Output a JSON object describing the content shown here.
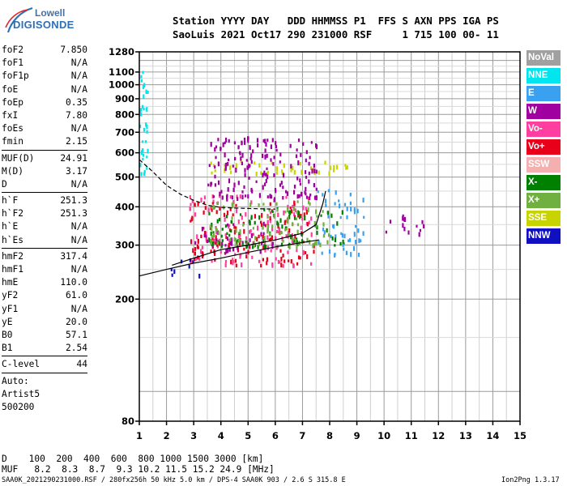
{
  "logo": {
    "line1": "Lowell",
    "line2": "DIGISONDE"
  },
  "header": {
    "line1": "Station YYYY DAY   DDD HHMMSS P1  FFS S AXN PPS IGA PS",
    "line2": "SaoLuis 2021 Oct17 290 231000 RSF     1 715 100 00- 11"
  },
  "params": {
    "group1": [
      {
        "k": "foF2",
        "v": "7.850"
      },
      {
        "k": "foF1",
        "v": "N/A"
      },
      {
        "k": "foF1p",
        "v": "N/A"
      },
      {
        "k": "foE",
        "v": "N/A"
      },
      {
        "k": "foEp",
        "v": "0.35"
      },
      {
        "k": "fxI",
        "v": "7.80"
      },
      {
        "k": "foEs",
        "v": "N/A"
      },
      {
        "k": "fmin",
        "v": "2.15"
      }
    ],
    "group2": [
      {
        "k": "MUF(D)",
        "v": "24.91"
      },
      {
        "k": "M(D)",
        "v": "3.17"
      },
      {
        "k": "D",
        "v": "N/A"
      }
    ],
    "group3": [
      {
        "k": "h`F",
        "v": "251.3"
      },
      {
        "k": "h`F2",
        "v": "251.3"
      },
      {
        "k": "h`E",
        "v": "N/A"
      },
      {
        "k": "h`Es",
        "v": "N/A"
      }
    ],
    "group4": [
      {
        "k": "hmF2",
        "v": "317.4"
      },
      {
        "k": "hmF1",
        "v": "N/A"
      },
      {
        "k": "hmE",
        "v": "110.0"
      },
      {
        "k": "yF2",
        "v": "61.0"
      },
      {
        "k": "yF1",
        "v": "N/A"
      },
      {
        "k": "yE",
        "v": "20.0"
      },
      {
        "k": "B0",
        "v": "57.1"
      },
      {
        "k": "B1",
        "v": "2.54"
      }
    ],
    "clevel": {
      "k": "C-level",
      "v": "44"
    },
    "auto": [
      "Auto:",
      "Artist5",
      "500200"
    ]
  },
  "legend": [
    {
      "label": "NoVal",
      "color": "#a0a0a0"
    },
    {
      "label": "NNE",
      "color": "#00e5ee"
    },
    {
      "label": "E",
      "color": "#3aa0f0"
    },
    {
      "label": "W",
      "color": "#a000a0"
    },
    {
      "label": "Vo-",
      "color": "#ff3fa0"
    },
    {
      "label": "Vo+",
      "color": "#e8001a"
    },
    {
      "label": "SSW",
      "color": "#f4b0b0"
    },
    {
      "label": "X-",
      "color": "#008000"
    },
    {
      "label": "X+",
      "color": "#70b040"
    },
    {
      "label": "SSE",
      "color": "#c8d400"
    },
    {
      "label": "NNW",
      "color": "#1010c0"
    }
  ],
  "bottom": {
    "d_row": "D    100  200  400  600  800 1000 1500 3000 [km]",
    "muf_row": "MUF   8.2  8.3  8.7  9.3 10.2 11.5 15.2 24.9 [MHz]"
  },
  "footer": {
    "left": "SAA0K_2021290231000.RSF / 280fx256h 50 kHz 5.0 km / DPS-4 SAA0K 903 / 2.6 S 315.8 E",
    "right": "Ion2Png 1.3.17"
  },
  "chart_data": {
    "type": "scatter",
    "x_ticks": [
      1,
      2,
      3,
      4,
      5,
      6,
      7,
      8,
      9,
      10,
      11,
      12,
      13,
      14,
      15
    ],
    "y_ticks": [
      80,
      200,
      300,
      400,
      500,
      600,
      700,
      800,
      900,
      1000,
      1100,
      1280
    ],
    "xlim": [
      1,
      15
    ],
    "ylim": [
      80,
      1280
    ],
    "y_scale": "log",
    "grid": true,
    "echo_clusters": [
      {
        "x_range": [
          2.8,
          7.4
        ],
        "y_range": [
          260,
          440
        ],
        "color": "#ff3fa0"
      },
      {
        "x_range": [
          2.8,
          7.4
        ],
        "y_range": [
          260,
          420
        ],
        "color": "#e8001a"
      },
      {
        "x_range": [
          3.0,
          6.0
        ],
        "y_range": [
          290,
          360
        ],
        "color": "#a000a0"
      },
      {
        "x_range": [
          2.0,
          3.2
        ],
        "y_range": [
          240,
          280
        ],
        "color": "#1010c0"
      },
      {
        "x_range": [
          3.5,
          8.8
        ],
        "y_range": [
          520,
          570
        ],
        "color": "#c8d400"
      },
      {
        "x_range": [
          7.5,
          9.3
        ],
        "y_range": [
          280,
          460
        ],
        "color": "#3aa0f0"
      },
      {
        "x_range": [
          9.8,
          11.5
        ],
        "y_range": [
          330,
          380
        ],
        "color": "#a000a0"
      },
      {
        "x_range": [
          3.5,
          7.5
        ],
        "y_range": [
          430,
          680
        ],
        "color": "#a000a0"
      },
      {
        "x_range": [
          3.5,
          8.5
        ],
        "y_range": [
          300,
          400
        ],
        "color": "#008000"
      },
      {
        "x_range": [
          3.5,
          8.0
        ],
        "y_range": [
          300,
          420
        ],
        "color": "#70b040"
      },
      {
        "x_range": [
          1.0,
          1.3
        ],
        "y_range": [
          500,
          1150
        ],
        "color": "#00e5ee"
      }
    ],
    "profile_curve": [
      {
        "x": 1.0,
        "y": 238
      },
      {
        "x": 2.0,
        "y": 250
      },
      {
        "x": 3.0,
        "y": 262
      },
      {
        "x": 4.0,
        "y": 272
      },
      {
        "x": 5.0,
        "y": 284
      },
      {
        "x": 6.0,
        "y": 296
      },
      {
        "x": 7.0,
        "y": 306
      },
      {
        "x": 7.6,
        "y": 312
      }
    ],
    "trace_curve": [
      {
        "x": 2.2,
        "y": 258
      },
      {
        "x": 3.0,
        "y": 272
      },
      {
        "x": 4.0,
        "y": 290
      },
      {
        "x": 5.0,
        "y": 300
      },
      {
        "x": 6.0,
        "y": 312
      },
      {
        "x": 7.0,
        "y": 328
      },
      {
        "x": 7.5,
        "y": 350
      },
      {
        "x": 7.75,
        "y": 410
      },
      {
        "x": 7.85,
        "y": 450
      }
    ],
    "dashed_curve": [
      {
        "x": 1.0,
        "y": 570
      },
      {
        "x": 1.5,
        "y": 520
      },
      {
        "x": 2.0,
        "y": 470
      },
      {
        "x": 2.5,
        "y": 440
      },
      {
        "x": 3.0,
        "y": 420
      },
      {
        "x": 3.5,
        "y": 405
      },
      {
        "x": 4.0,
        "y": 398
      },
      {
        "x": 5.0,
        "y": 395
      },
      {
        "x": 6.0,
        "y": 393
      }
    ]
  }
}
